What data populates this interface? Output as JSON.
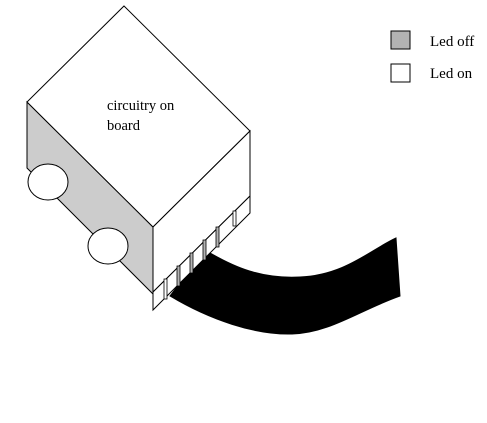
{
  "diagram": {
    "body_label_line1": "circuitry on",
    "body_label_line2": "board"
  },
  "legend": {
    "items": [
      {
        "label": "Led off",
        "color": "#b3b3b3"
      },
      {
        "label": "Led on",
        "color": "#ffffff"
      }
    ]
  },
  "colors": {
    "stroke": "#000000",
    "box_top": "#ffffff",
    "box_side": "#cccccc",
    "box_front": "#ffffff",
    "track": "#000000",
    "wheel": "#ffffff"
  }
}
